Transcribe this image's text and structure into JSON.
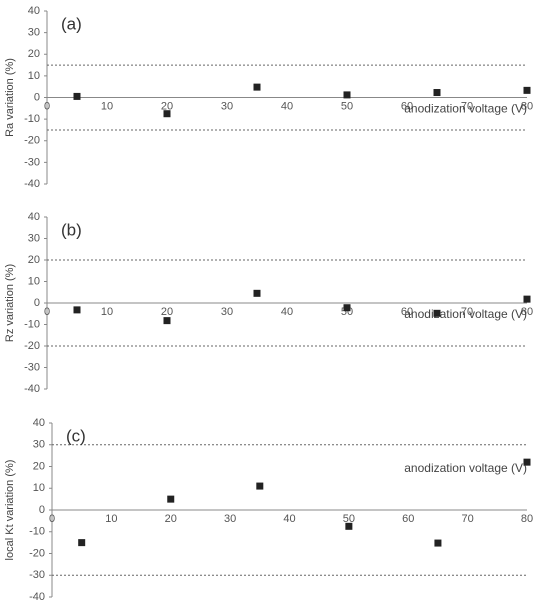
{
  "chart_data": [
    {
      "type": "scatter",
      "panel_label": "(a)",
      "ylabel": "Ra variation (%)",
      "xlabel": "anodization voltage (V)",
      "x": [
        5,
        20,
        35,
        50,
        65,
        80
      ],
      "values": [
        0.5,
        -7.5,
        4.8,
        1.2,
        2.3,
        3.3
      ],
      "color": "#222222",
      "xlim": [
        0,
        80
      ],
      "ylim": [
        -40,
        40
      ],
      "xticks": [
        0,
        10,
        20,
        30,
        40,
        50,
        60,
        70,
        80
      ],
      "yticks": [
        -40,
        -30,
        -20,
        -10,
        0,
        10,
        20,
        30,
        40
      ],
      "reference_lines": [
        15,
        -15
      ]
    },
    {
      "type": "scatter",
      "panel_label": "(b)",
      "ylabel": "Rz variation (%)",
      "xlabel": "anodization voltage (V)",
      "x": [
        5,
        20,
        35,
        50,
        65,
        80
      ],
      "values": [
        -3.2,
        -8.2,
        4.5,
        -2.2,
        -4.8,
        1.8
      ],
      "color": "#222222",
      "xlim": [
        0,
        80
      ],
      "ylim": [
        -40,
        40
      ],
      "xticks": [
        0,
        10,
        20,
        30,
        40,
        50,
        60,
        70,
        80
      ],
      "yticks": [
        -40,
        -30,
        -20,
        -10,
        0,
        10,
        20,
        30,
        40
      ],
      "reference_lines": [
        20,
        -20
      ]
    },
    {
      "type": "scatter",
      "panel_label": "(c)",
      "ylabel": "local Kt variation (%)",
      "xlabel": "anodization voltage (V)",
      "x": [
        5,
        20,
        35,
        50,
        65,
        80
      ],
      "values": [
        -15,
        5,
        11,
        -7.5,
        -15.2,
        22
      ],
      "color": "#222222",
      "xlim": [
        0,
        80
      ],
      "ylim": [
        -40,
        40
      ],
      "xticks": [
        0,
        10,
        20,
        30,
        40,
        50,
        60,
        70,
        80
      ],
      "yticks": [
        -40,
        -30,
        -20,
        -10,
        0,
        10,
        20,
        30,
        40
      ],
      "reference_lines": [
        30,
        -30
      ]
    }
  ]
}
